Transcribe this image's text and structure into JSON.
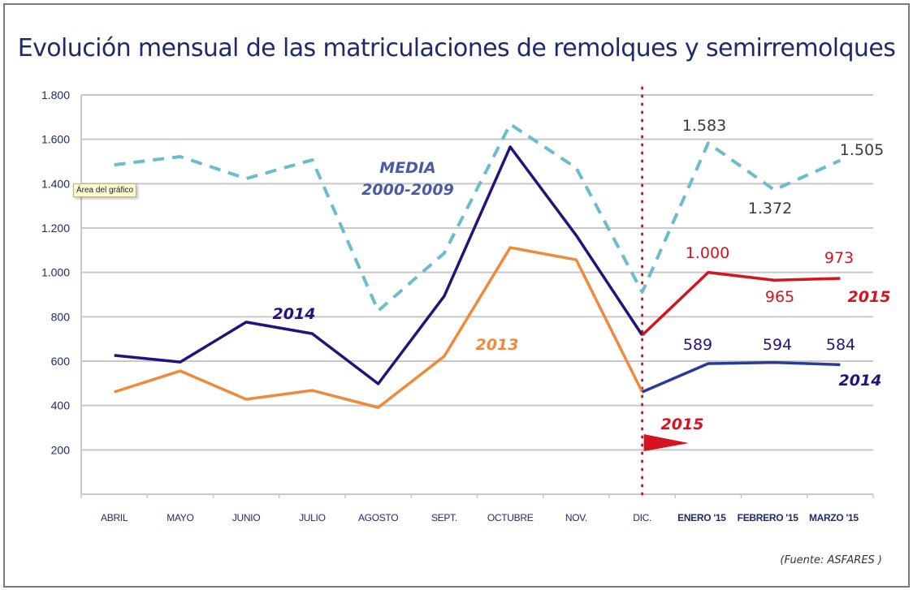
{
  "chart_data": {
    "type": "line",
    "title": "Evolución mensual de las matriculaciones de remolques y semirremolques",
    "source": "(Fuente:  ASFARES )",
    "tooltip": "Área del gráfico",
    "categories": [
      "ABRIL",
      "MAYO",
      "JUNIO",
      "JULIO",
      "AGOSTO",
      "SEPT.",
      "OCTUBRE",
      "NOV.",
      "DIC.",
      "ENERO '15",
      "FEBRERO '15",
      "MARZO '15"
    ],
    "bold_categories": [
      9,
      10,
      11
    ],
    "ylim": [
      0,
      1800
    ],
    "yticks": [
      200,
      400,
      600,
      800,
      1000,
      1200,
      1400,
      1600,
      1800
    ],
    "ytick_labels": [
      "200",
      "400",
      "600",
      "800",
      "1.000",
      "1.200",
      "1.400",
      "1.600",
      "1.800"
    ],
    "grid": true,
    "divider_after_category": 8,
    "series": [
      {
        "name": "MEDIA 2000-2009",
        "label_lines": [
          "MEDIA",
          "2000-2009"
        ],
        "color": "#6bbccc",
        "dashed": true,
        "values": [
          1485,
          1522,
          1423,
          1507,
          827,
          1087,
          1668,
          1471,
          911,
          1583,
          1372,
          1505
        ],
        "data_labels": {
          "9": "1.583",
          "10": "1.372",
          "11": "1.505"
        }
      },
      {
        "name": "2014",
        "label": "2014",
        "color": "#25127a",
        "values": [
          626,
          596,
          776,
          724,
          498,
          893,
          1566,
          1167,
          717,
          null,
          null,
          null
        ]
      },
      {
        "name": "2013",
        "label": "2013",
        "color": "#f08a3a",
        "values": [
          461,
          556,
          428,
          468,
          391,
          622,
          1112,
          1057,
          461,
          null,
          null,
          null
        ]
      },
      {
        "name": "2015",
        "label": "2015",
        "color": "#d4141f",
        "values": [
          null,
          null,
          null,
          null,
          null,
          null,
          null,
          null,
          717,
          1000,
          965,
          973
        ],
        "data_labels": {
          "9": "1.000",
          "10": "965",
          "11": "973"
        }
      },
      {
        "name": "2014 (ene-mar)",
        "label": "2014",
        "color": "#2a3a9a",
        "values": [
          null,
          null,
          null,
          null,
          null,
          null,
          null,
          null,
          461,
          589,
          594,
          584
        ],
        "data_labels": {
          "9": "589",
          "10": "594",
          "11": "584"
        }
      }
    ],
    "annotation_arrow_label": "2015"
  }
}
